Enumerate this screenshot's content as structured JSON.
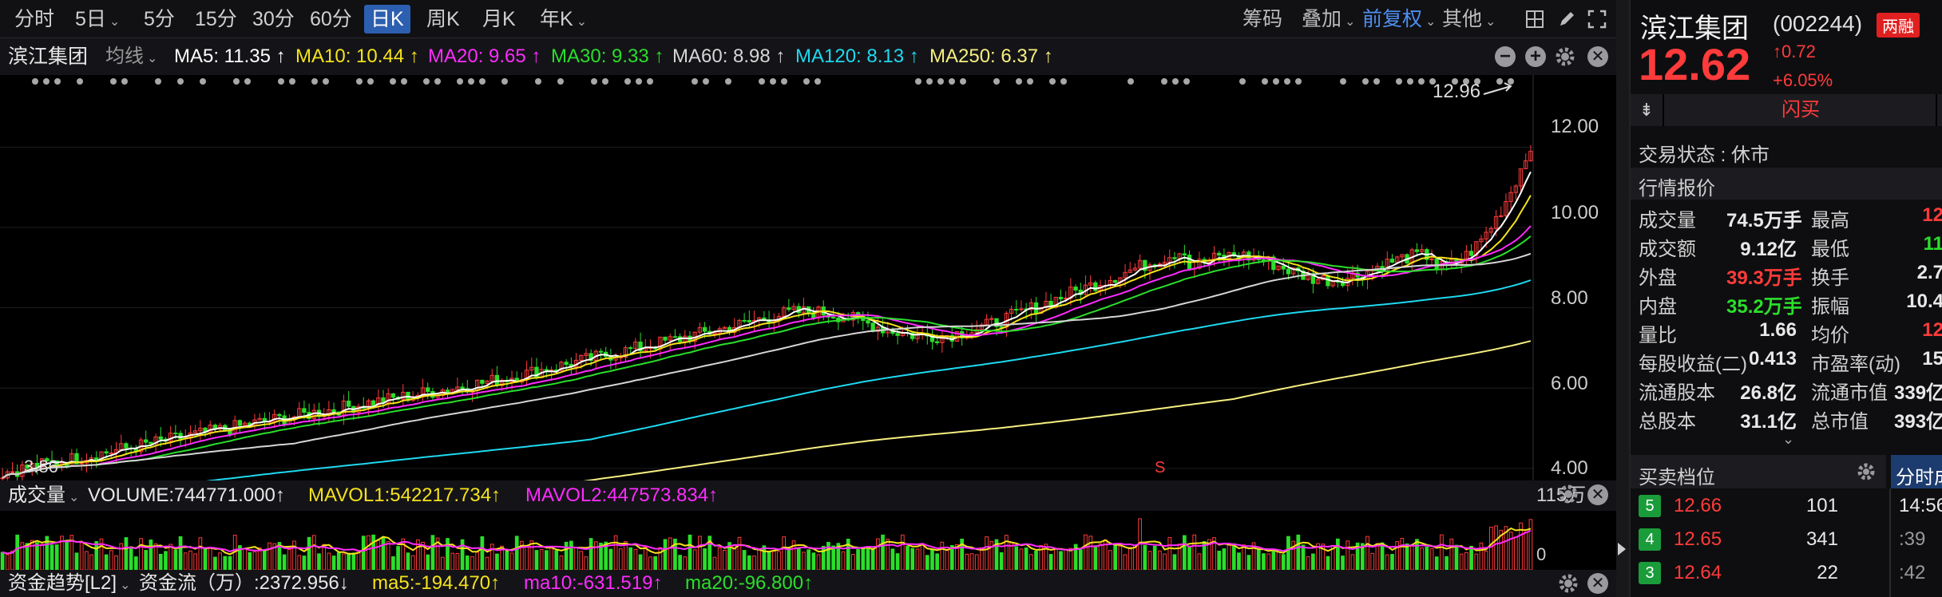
{
  "periods": [
    "分时",
    "5日",
    "5分",
    "15分",
    "30分",
    "60分",
    "日K",
    "周K",
    "月K",
    "年K"
  ],
  "active_period": "日K",
  "tools": {
    "chips": "筹码",
    "overlay": "叠加",
    "adjust": "前复权",
    "other": "其他"
  },
  "stock": {
    "name": "滨江集团",
    "ma_label": "均线",
    "code": "(002244)",
    "badge": "两融",
    "price": "12.62",
    "change": "0.72",
    "change_pct": "+6.05%",
    "flash_buy": "闪买",
    "status_label": "交易状态 : 休市",
    "quote_title": "行情报价"
  },
  "ma_legend": [
    {
      "text": "MA5: 11.35 ↑",
      "color": "#ffffff"
    },
    {
      "text": "MA10: 10.44 ↑",
      "color": "#f5e21b"
    },
    {
      "text": "MA20: 9.65 ↑",
      "color": "#ff2bff"
    },
    {
      "text": "MA30: 9.33 ↑",
      "color": "#2bde2b"
    },
    {
      "text": "MA60: 8.98 ↑",
      "color": "#d6d6d6"
    },
    {
      "text": "MA120: 8.13 ↑",
      "color": "#1ed9f0"
    },
    {
      "text": "MA250: 6.37 ↑",
      "color": "#f7ef80"
    }
  ],
  "price_axis": [
    "12.00",
    "10.00",
    "8.00",
    "6.00",
    "4.00"
  ],
  "annotations": {
    "high": "12.96",
    "low": "3.86",
    "signal": "S"
  },
  "volume": {
    "title": "成交量",
    "volume": "VOLUME:744771.000↑",
    "mavol1": "MAVOL1:542217.734↑",
    "mavol2": "MAVOL2:447573.834↑",
    "axis_top": "115万",
    "axis_bottom": "0"
  },
  "fund": {
    "title": "资金趋势[L2]",
    "flow": "资金流（万）:2372.956↓",
    "ma5": "ma5:-194.470↑",
    "ma10": "ma10:-631.519↑",
    "ma20": "ma20:-96.800↑"
  },
  "quote_rows": [
    {
      "l1": "成交量",
      "v1": "74.5万手",
      "c1": "#e8e8e8",
      "l2": "最高",
      "v2": "12",
      "c2": "#ff3b3b"
    },
    {
      "l1": "成交额",
      "v1": "9.12亿",
      "c1": "#e8e8e8",
      "l2": "最低",
      "v2": "11",
      "c2": "#2bde2b"
    },
    {
      "l1": "外盘",
      "v1": "39.3万手",
      "c1": "#ff3b3b",
      "l2": "换手",
      "v2": "2.7",
      "c2": "#e8e8e8"
    },
    {
      "l1": "内盘",
      "v1": "35.2万手",
      "c1": "#2bde2b",
      "l2": "振幅",
      "v2": "10.4",
      "c2": "#e8e8e8"
    },
    {
      "l1": "量比",
      "v1": "1.66",
      "c1": "#e8e8e8",
      "l2": "均价",
      "v2": "12",
      "c2": "#ff3b3b"
    },
    {
      "l1": "每股收益(二)",
      "v1": "0.413",
      "c1": "#e8e8e8",
      "l2": "市盈率(动)",
      "v2": "15",
      "c2": "#e8e8e8"
    },
    {
      "l1": "流通股本",
      "v1": "26.8亿",
      "c1": "#e8e8e8",
      "l2": "流通市值",
      "v2": "339亿",
      "c2": "#e8e8e8"
    },
    {
      "l1": "总股本",
      "v1": "31.1亿",
      "c1": "#e8e8e8",
      "l2": "总市值",
      "v2": "393亿",
      "c2": "#e8e8e8"
    }
  ],
  "order_book": {
    "title": "买卖档位",
    "tab": "分时成",
    "rows": [
      {
        "level": "5",
        "price": "12.66",
        "qty": "101",
        "time": "14:56"
      },
      {
        "level": "4",
        "price": "12.65",
        "qty": "341",
        "time": ":39"
      },
      {
        "level": "3",
        "price": "12.64",
        "qty": "22",
        "time": ":42"
      }
    ]
  }
}
